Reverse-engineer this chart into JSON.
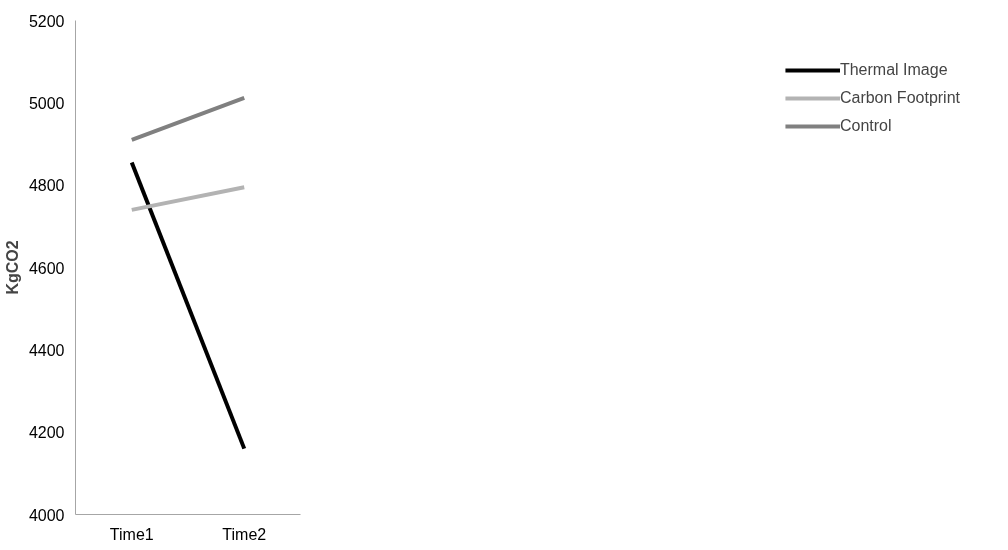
{
  "chart_data": {
    "type": "line",
    "ylabel": "KgCO2",
    "categories": [
      "Time1",
      "Time2"
    ],
    "series": [
      {
        "name": "Thermal Image",
        "color": "#000000",
        "values": [
          4855,
          4160
        ]
      },
      {
        "name": "Carbon Footprint",
        "color": "#b3b3b3",
        "values": [
          4740,
          4795
        ]
      },
      {
        "name": "Control",
        "color": "#808080",
        "values": [
          4910,
          5012
        ]
      }
    ],
    "ylim": [
      4000,
      5200
    ],
    "yticks": [
      4000,
      4200,
      4400,
      4600,
      4800,
      5000,
      5200
    ],
    "grid": false,
    "legend": "right",
    "marker": "none",
    "line_style": "solid"
  }
}
